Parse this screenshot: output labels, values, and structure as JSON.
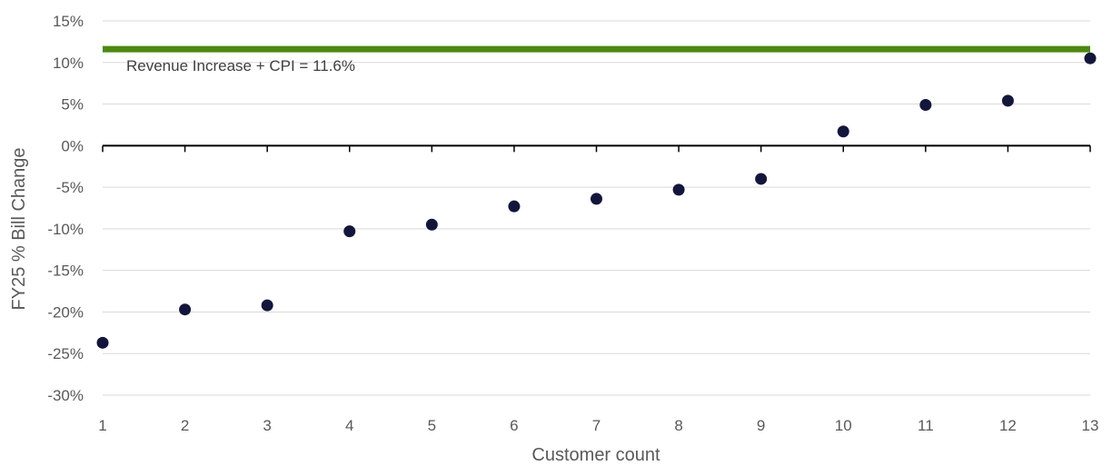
{
  "chart_data": {
    "type": "scatter",
    "title": "",
    "xlabel": "Customer count",
    "ylabel": "FY25 % Bill Change",
    "x": [
      1,
      2,
      3,
      4,
      5,
      6,
      7,
      8,
      9,
      10,
      11,
      12,
      13
    ],
    "series": [
      {
        "values": [
          -23.7,
          -19.7,
          -19.2,
          -10.3,
          -9.5,
          -7.3,
          -6.4,
          -5.3,
          -4.0,
          1.7,
          4.9,
          5.4,
          10.5
        ],
        "color": "#13163c"
      }
    ],
    "xlim": [
      1,
      13
    ],
    "ylim": [
      -30,
      15
    ],
    "y_ticks": [
      "-30%",
      "-25%",
      "-20%",
      "-15%",
      "-10%",
      "-5%",
      "0%",
      "5%",
      "10%",
      "15%"
    ],
    "x_ticks": [
      "1",
      "2",
      "3",
      "4",
      "5",
      "6",
      "7",
      "8",
      "9",
      "10",
      "11",
      "12",
      "13"
    ],
    "grid": true,
    "reference_line": {
      "value": 11.6,
      "label": "Revenue Increase + CPI = 11.6%",
      "color": "#4a8a0c"
    }
  }
}
